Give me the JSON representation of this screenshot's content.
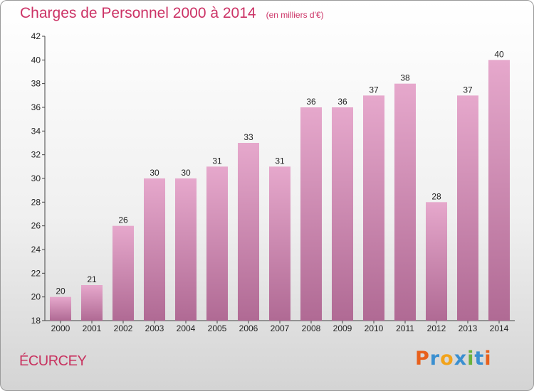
{
  "title": "Charges de Personnel 2000 à 2014",
  "subtitle": "(en milliers d'€)",
  "commune": "ÉCURCEY",
  "logo": {
    "text": "Proxiti",
    "letters": [
      "P",
      "r",
      "o",
      "x",
      "i",
      "t",
      "i"
    ],
    "colors": [
      "#e8601c",
      "#3a8fd0",
      "#f2a31b",
      "#3a8fd0",
      "#6ab23c",
      "#3a8fd0",
      "#e8601c"
    ]
  },
  "colors": {
    "bar_top": "#e6a8cc",
    "bar_bottom": "#b06a94",
    "title": "#cc3366"
  },
  "chart_data": {
    "type": "bar",
    "categories": [
      "2000",
      "2001",
      "2002",
      "2003",
      "2004",
      "2005",
      "2006",
      "2007",
      "2008",
      "2009",
      "2010",
      "2011",
      "2012",
      "2013",
      "2014"
    ],
    "values": [
      20,
      21,
      26,
      30,
      30,
      31,
      33,
      31,
      36,
      36,
      37,
      38,
      28,
      37,
      40
    ],
    "ylim": [
      18,
      42
    ],
    "yticks": [
      18,
      20,
      22,
      24,
      26,
      28,
      30,
      32,
      34,
      36,
      38,
      40,
      42
    ],
    "grid": false
  }
}
